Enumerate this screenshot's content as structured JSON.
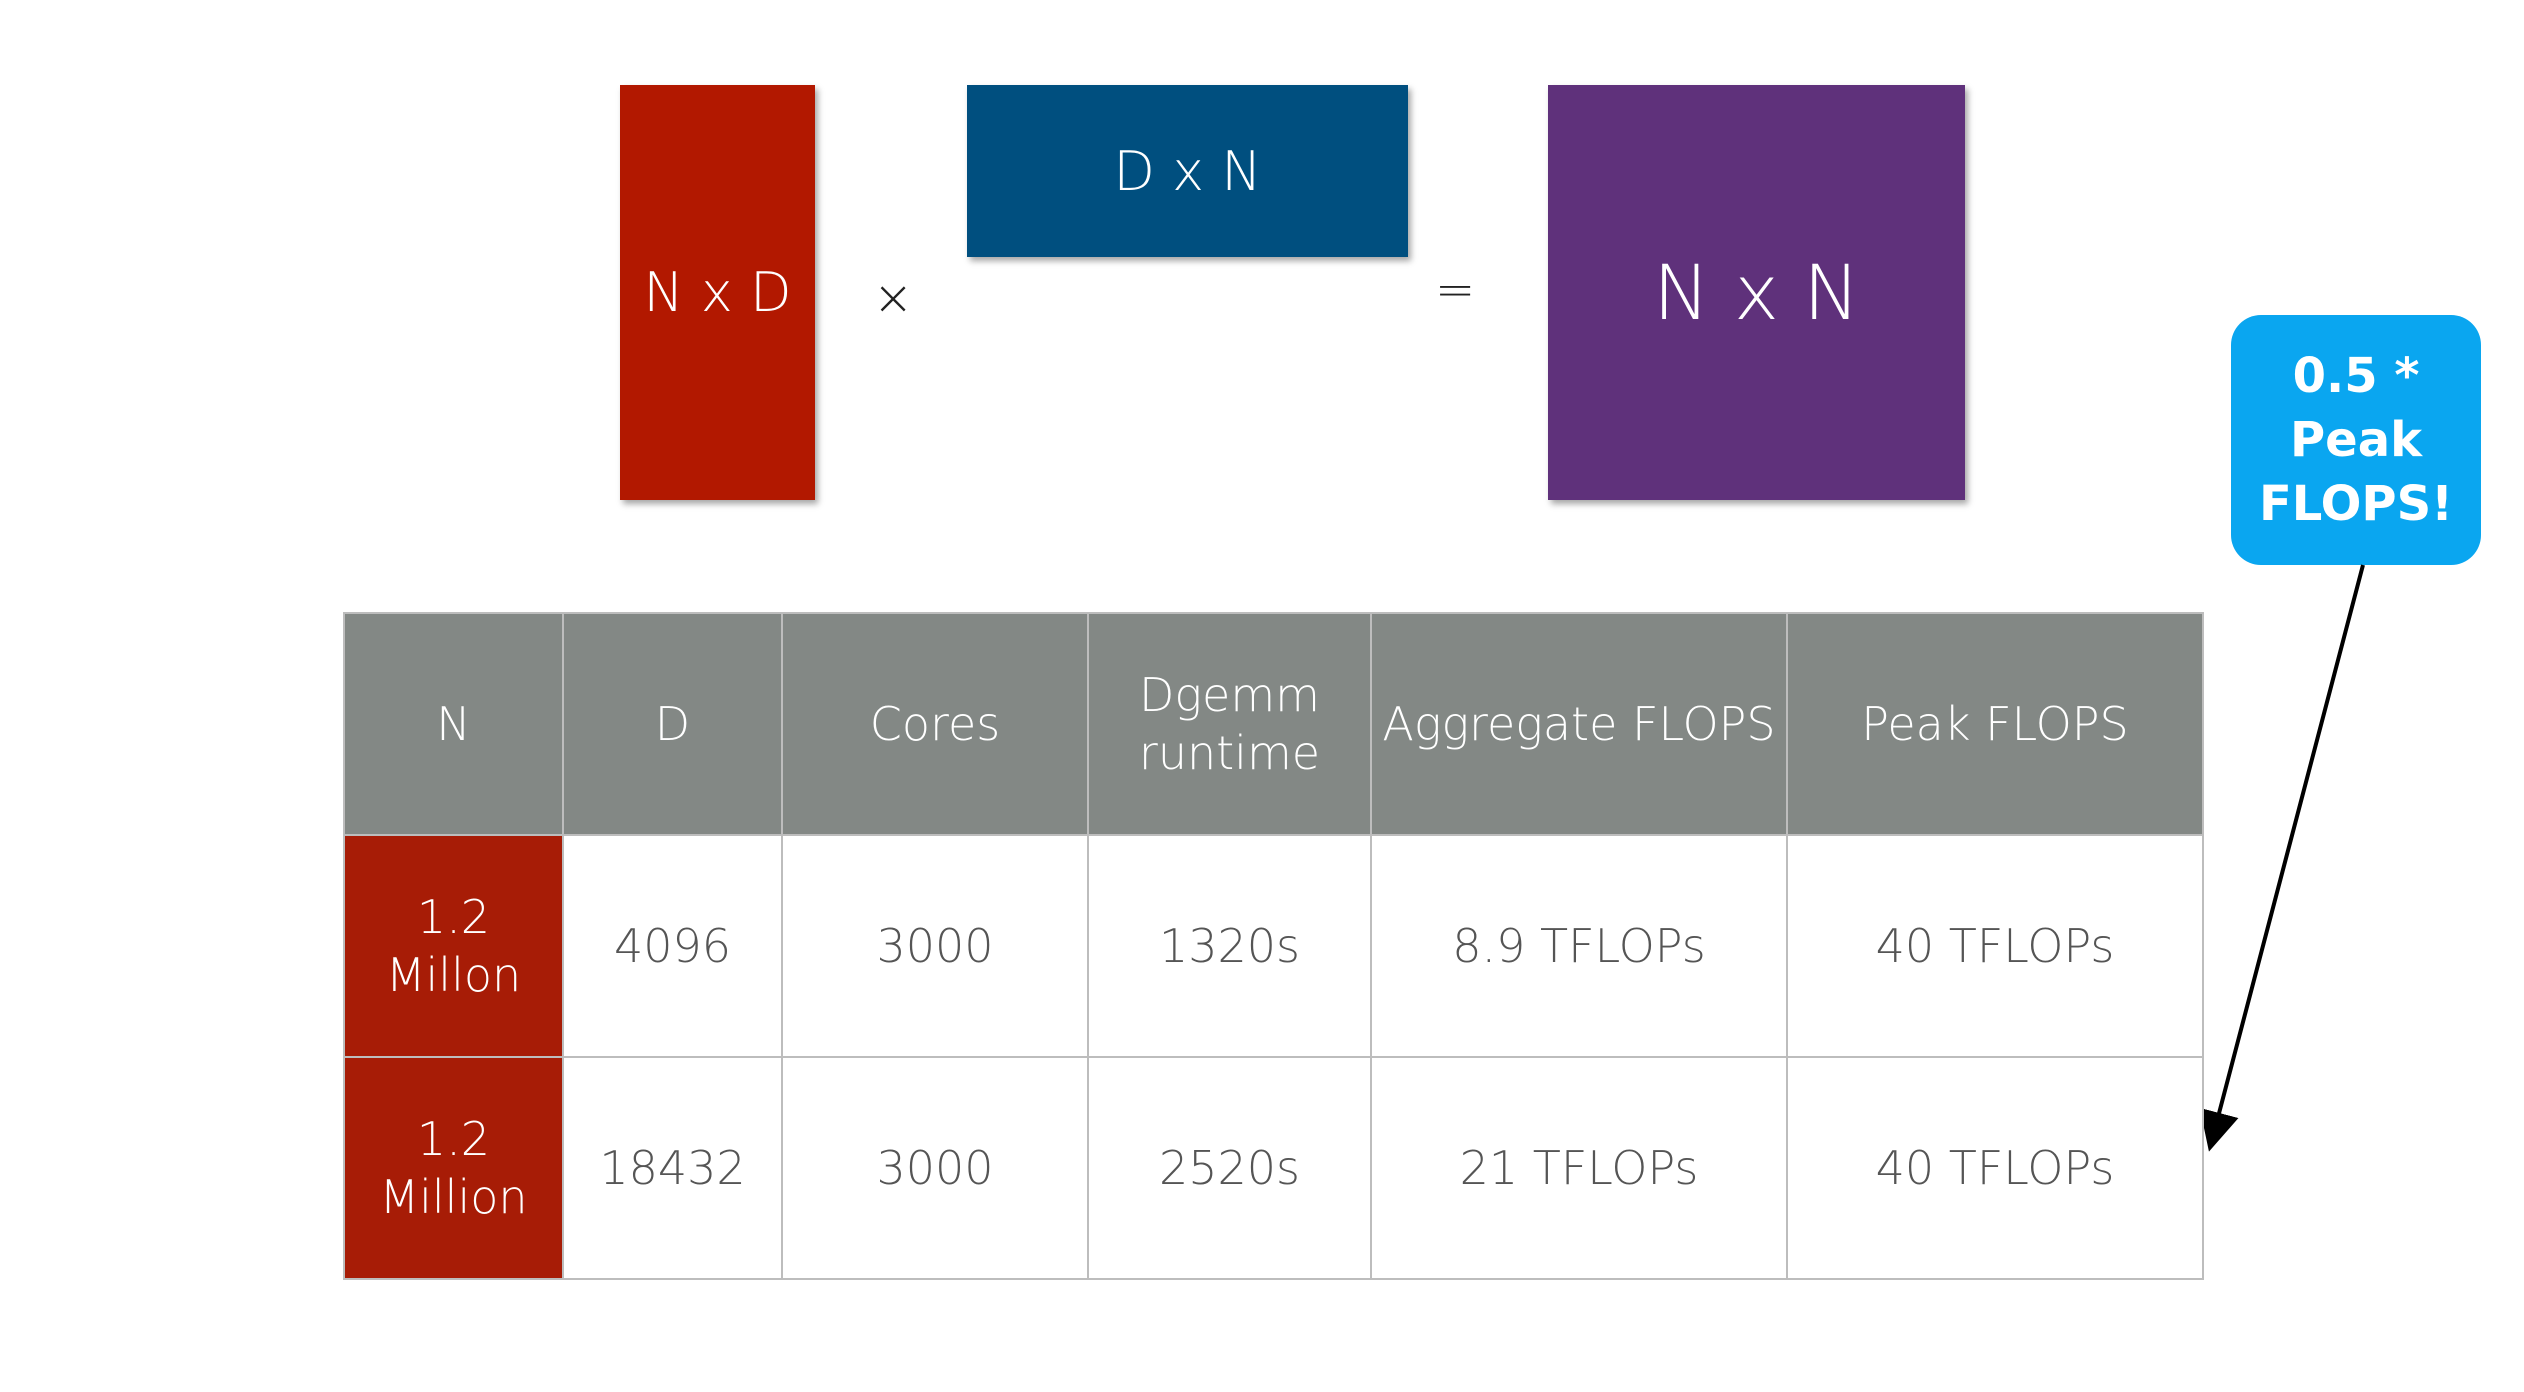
{
  "equation": {
    "left_matrix": "N x D",
    "times_sign": "×",
    "right_matrix": "D x N",
    "equals_sign": "=",
    "result_matrix": "N x N"
  },
  "callout": {
    "text_line1": "0.5 * Peak",
    "text_line2": "FLOPS!"
  },
  "table": {
    "headers": [
      "N",
      "D",
      "Cores",
      "Dgemm runtime",
      "Aggregate FLOPS",
      "Peak FLOPS"
    ],
    "rows": [
      [
        "1.2 Millon",
        "4096",
        "3000",
        "1320s",
        "8.9 TFLOPs",
        "40 TFLOPs"
      ],
      [
        "1.2 Million",
        "18432",
        "3000",
        "2520s",
        "21 TFLOPs",
        "40 TFLOPs"
      ]
    ]
  },
  "colors": {
    "left_matrix": "#b21800",
    "right_matrix": "#004f7f",
    "result_matrix": "#5f317b",
    "callout": "#0aa6f0",
    "table_header": "#838885",
    "n_column": "#a71c06"
  }
}
